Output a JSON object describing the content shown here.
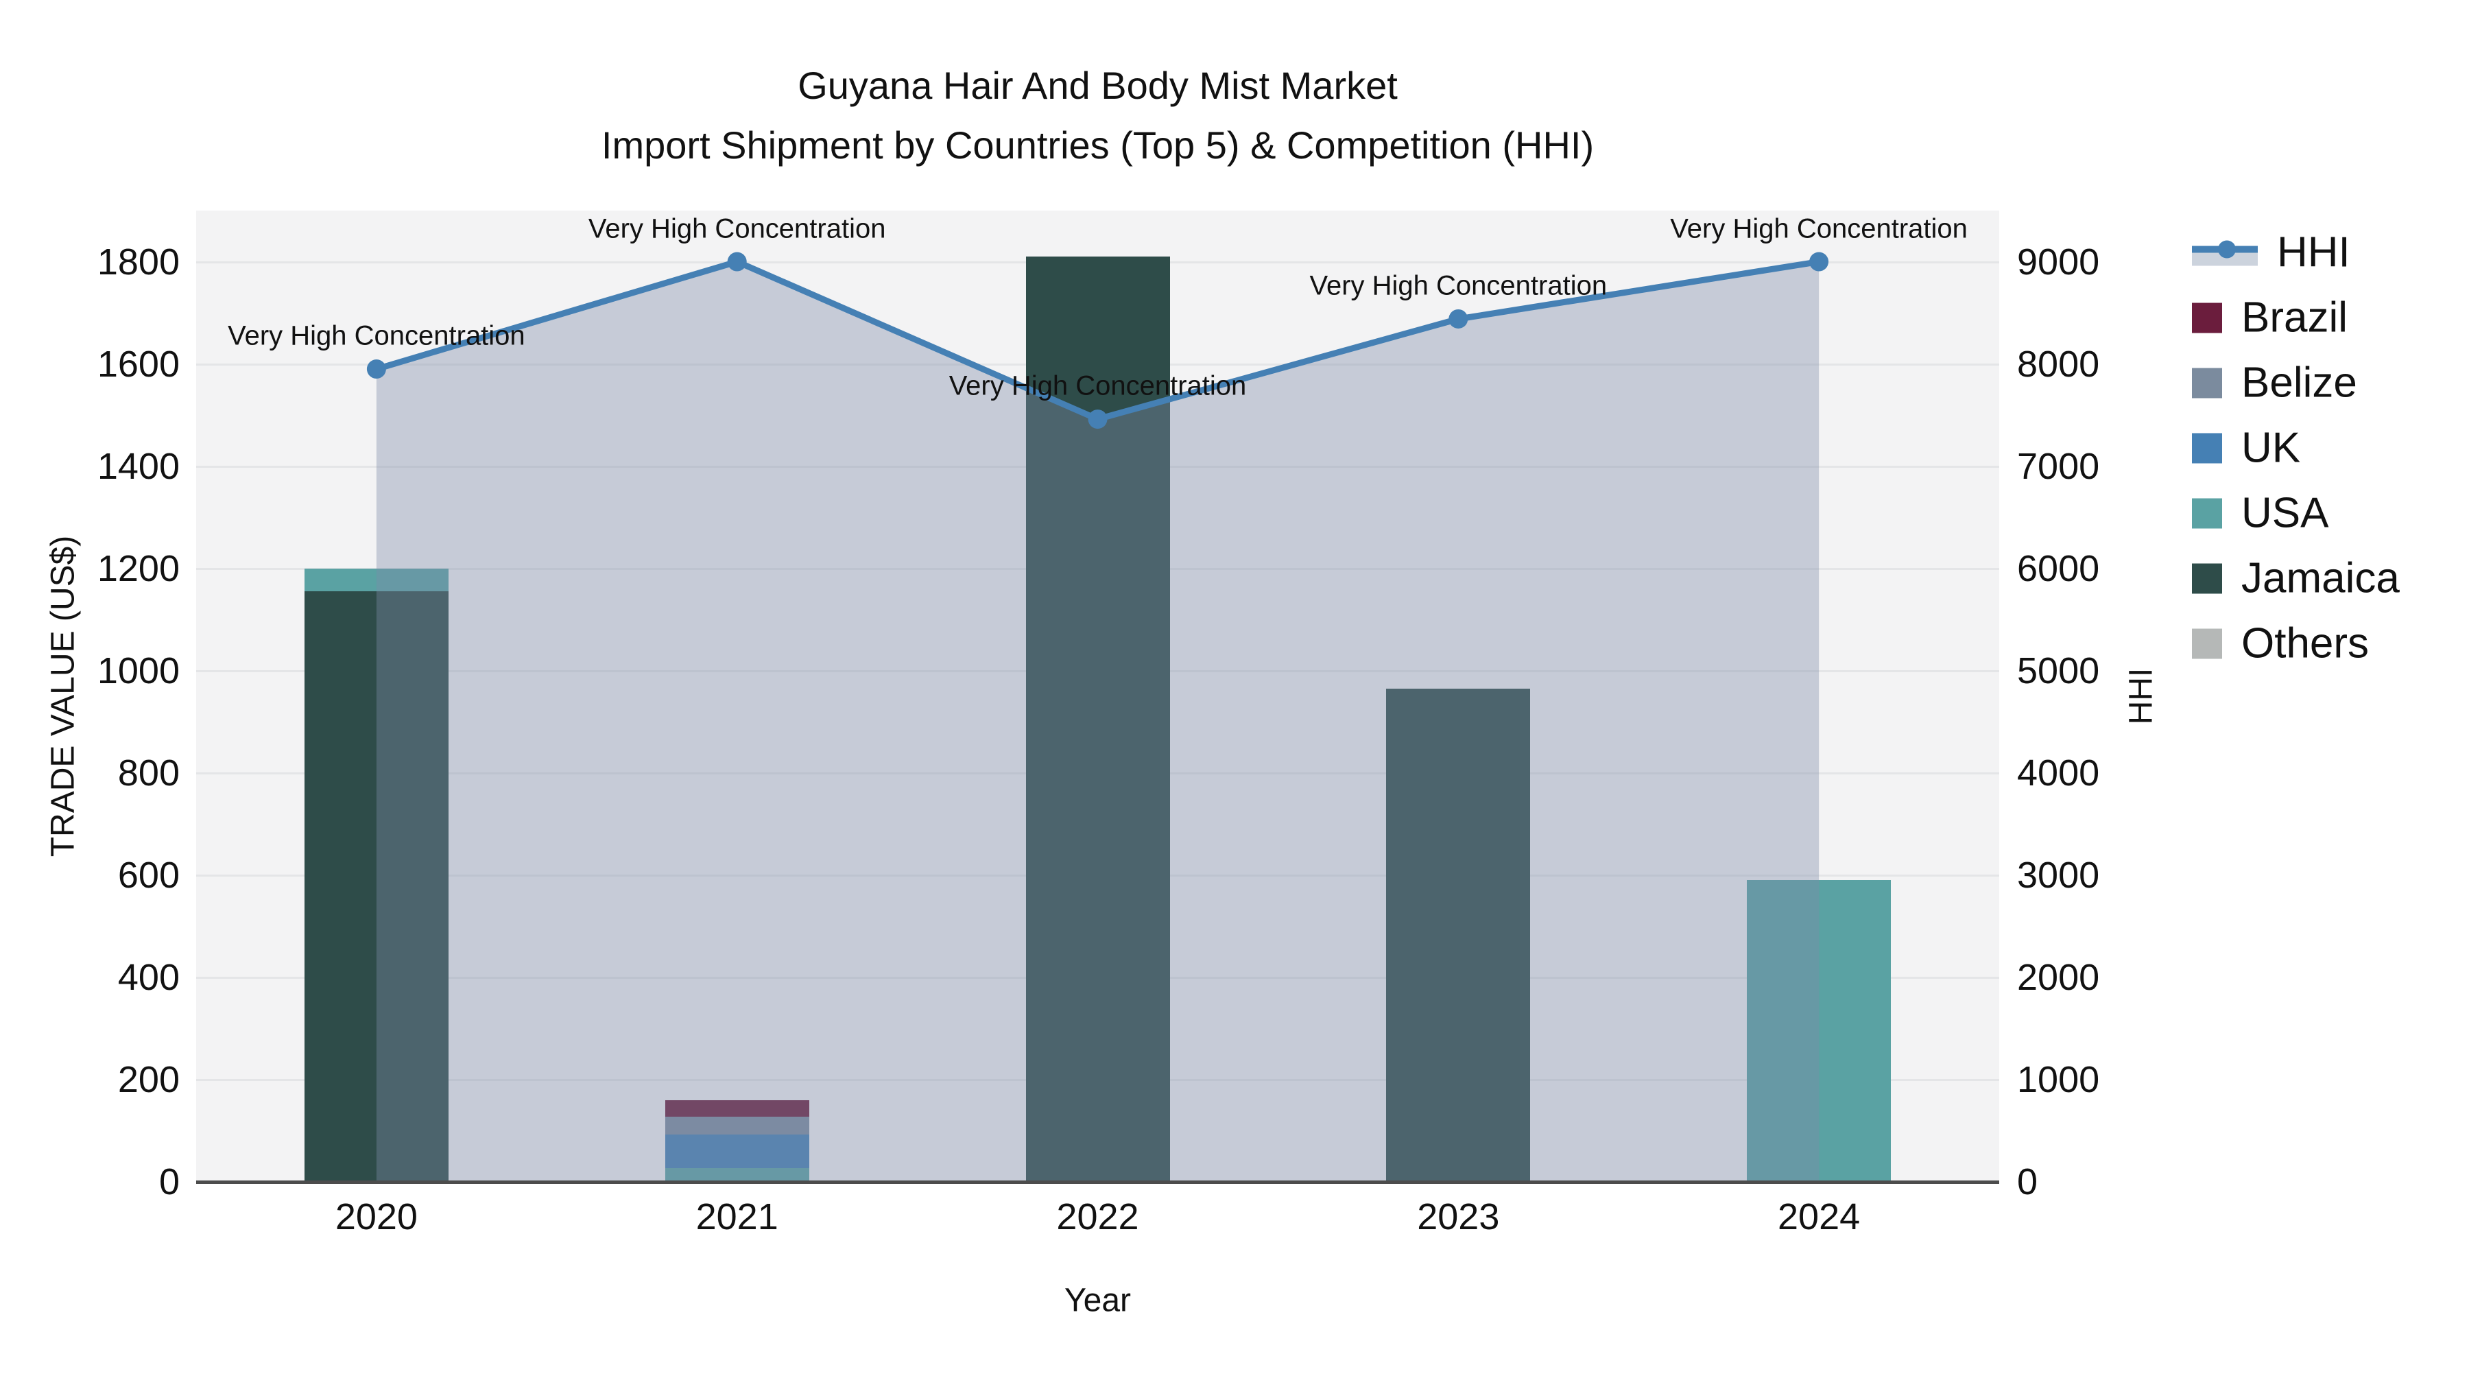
{
  "title": {
    "line1": "Guyana Hair And Body Mist Market",
    "line2": "Import Shipment by Countries (Top 5) & Competition (HHI)"
  },
  "axes": {
    "x_label": "Year",
    "y_left_label": "TRADE VALUE (US$)",
    "y_right_label": "HHI",
    "y_left_ticks": [
      0,
      200,
      400,
      600,
      800,
      1000,
      1200,
      1400,
      1600,
      1800
    ],
    "y_right_ticks": [
      0,
      1000,
      2000,
      3000,
      4000,
      5000,
      6000,
      7000,
      8000,
      9000
    ]
  },
  "legend": [
    {
      "label": "HHI",
      "type": "line"
    },
    {
      "label": "Brazil",
      "type": "patch"
    },
    {
      "label": "Belize",
      "type": "patch"
    },
    {
      "label": "UK",
      "type": "patch"
    },
    {
      "label": "USA",
      "type": "patch"
    },
    {
      "label": "Jamaica",
      "type": "patch"
    },
    {
      "label": "Others",
      "type": "patch"
    }
  ],
  "colors": {
    "Brazil": "#6b1d3d",
    "Belize": "#7b8b9e",
    "UK": "#4580b4",
    "USA": "#5aa2a3",
    "Jamaica": "#2e4c49",
    "Others": "#b5b8b7",
    "hhi_line": "#4580b4",
    "hhi_area": "rgba(125,140,168,0.38)",
    "legend_band": "#ccd3dd",
    "plot_bg": "#f3f3f4",
    "grid": "#e4e5e7",
    "axis_line": "#4c4c4c"
  },
  "chart_data": {
    "type": "combo-stacked-bar-line",
    "title": "Guyana Hair And Body Mist Market — Import Shipment by Countries (Top 5) & Competition (HHI)",
    "categories": [
      "2020",
      "2021",
      "2022",
      "2023",
      "2024"
    ],
    "xlabel": "Year",
    "ylabel_left": "TRADE VALUE (US$)",
    "ylabel_right": "HHI",
    "ylim_left": [
      0,
      1900
    ],
    "ylim_right": [
      0,
      9500
    ],
    "grid": true,
    "legend_position": "right",
    "bar_series": [
      {
        "name": "Brazil",
        "values": [
          0,
          32,
          0,
          0,
          0
        ]
      },
      {
        "name": "Belize",
        "values": [
          0,
          35,
          0,
          0,
          0
        ]
      },
      {
        "name": "UK",
        "values": [
          0,
          66,
          0,
          0,
          0
        ]
      },
      {
        "name": "USA",
        "values": [
          45,
          27,
          0,
          0,
          590
        ]
      },
      {
        "name": "Jamaica",
        "values": [
          1155,
          0,
          1810,
          965,
          0
        ]
      },
      {
        "name": "Others",
        "values": [
          0,
          0,
          0,
          0,
          0
        ]
      }
    ],
    "stack_order": [
      [
        "Jamaica",
        "USA"
      ],
      [
        "USA",
        "UK",
        "Belize",
        "Brazil"
      ],
      [
        "Jamaica"
      ],
      [
        "Jamaica"
      ],
      [
        "USA"
      ]
    ],
    "line_series": {
      "name": "HHI",
      "axis": "right",
      "values": [
        7950,
        9000,
        7460,
        8440,
        9000
      ]
    },
    "annotations": [
      {
        "year": "2020",
        "text": "Very High Concentration"
      },
      {
        "year": "2021",
        "text": "Very High Concentration"
      },
      {
        "year": "2022",
        "text": "Very High Concentration"
      },
      {
        "year": "2023",
        "text": "Very High Concentration"
      },
      {
        "year": "2024",
        "text": "Very High Concentration"
      }
    ]
  }
}
